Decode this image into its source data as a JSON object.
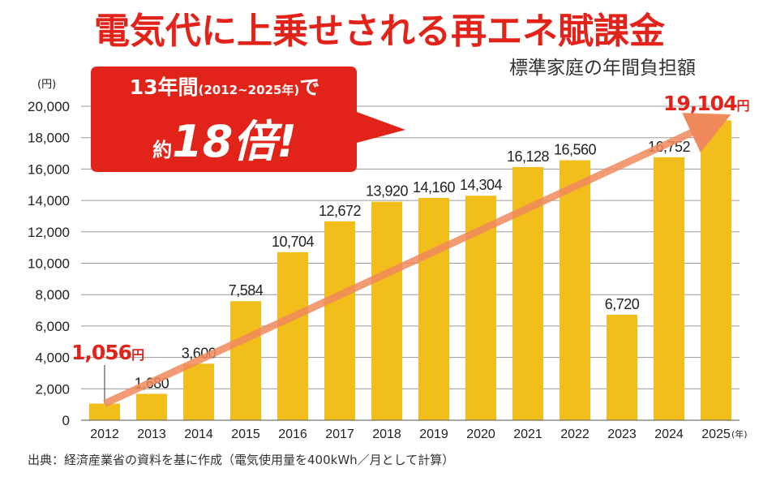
{
  "title": "電気代に上乗せされる再エネ賦課金",
  "subtitle": "標準家庭の年間負担額",
  "y_unit": "(円)",
  "x_unit": "(年)",
  "callout": {
    "line1_main": "13年間",
    "line1_paren": "(2012~2025年)",
    "line1_end": "で",
    "line2_pre": "約",
    "line2_big": "18倍!"
  },
  "highlights": {
    "first_value": "1,056",
    "first_unit": "円",
    "last_value": "19,104",
    "last_unit": "円"
  },
  "source": "出典：経済産業省の資料を基に作成（電気使用量を400kWh／月として計算）",
  "colors": {
    "bar": "#f2be1c",
    "accent": "#e2231a",
    "arrow": "#f08a5d"
  },
  "chart_data": {
    "type": "bar",
    "categories": [
      "2012",
      "2013",
      "2014",
      "2015",
      "2016",
      "2017",
      "2018",
      "2019",
      "2020",
      "2021",
      "2022",
      "2023",
      "2024",
      "2025"
    ],
    "values": [
      1056,
      1680,
      3600,
      7584,
      10704,
      12672,
      13920,
      14160,
      14304,
      16128,
      16560,
      6720,
      16752,
      19104
    ],
    "value_labels": [
      "1,056",
      "1,680",
      "3,600",
      "7,584",
      "10,704",
      "12,672",
      "13,920",
      "14,160",
      "14,304",
      "16,128",
      "16,560",
      "6,720",
      "16,752",
      "19,104"
    ],
    "y_ticks": [
      0,
      2000,
      4000,
      6000,
      8000,
      10000,
      12000,
      14000,
      16000,
      18000,
      20000
    ],
    "y_tick_labels": [
      "0",
      "2,000",
      "4,000",
      "6,000",
      "8,000",
      "10,000",
      "12,000",
      "14,000",
      "16,000",
      "18,000",
      "20,000"
    ],
    "ylim": [
      0,
      20000
    ],
    "grid": true,
    "legend": "none"
  }
}
